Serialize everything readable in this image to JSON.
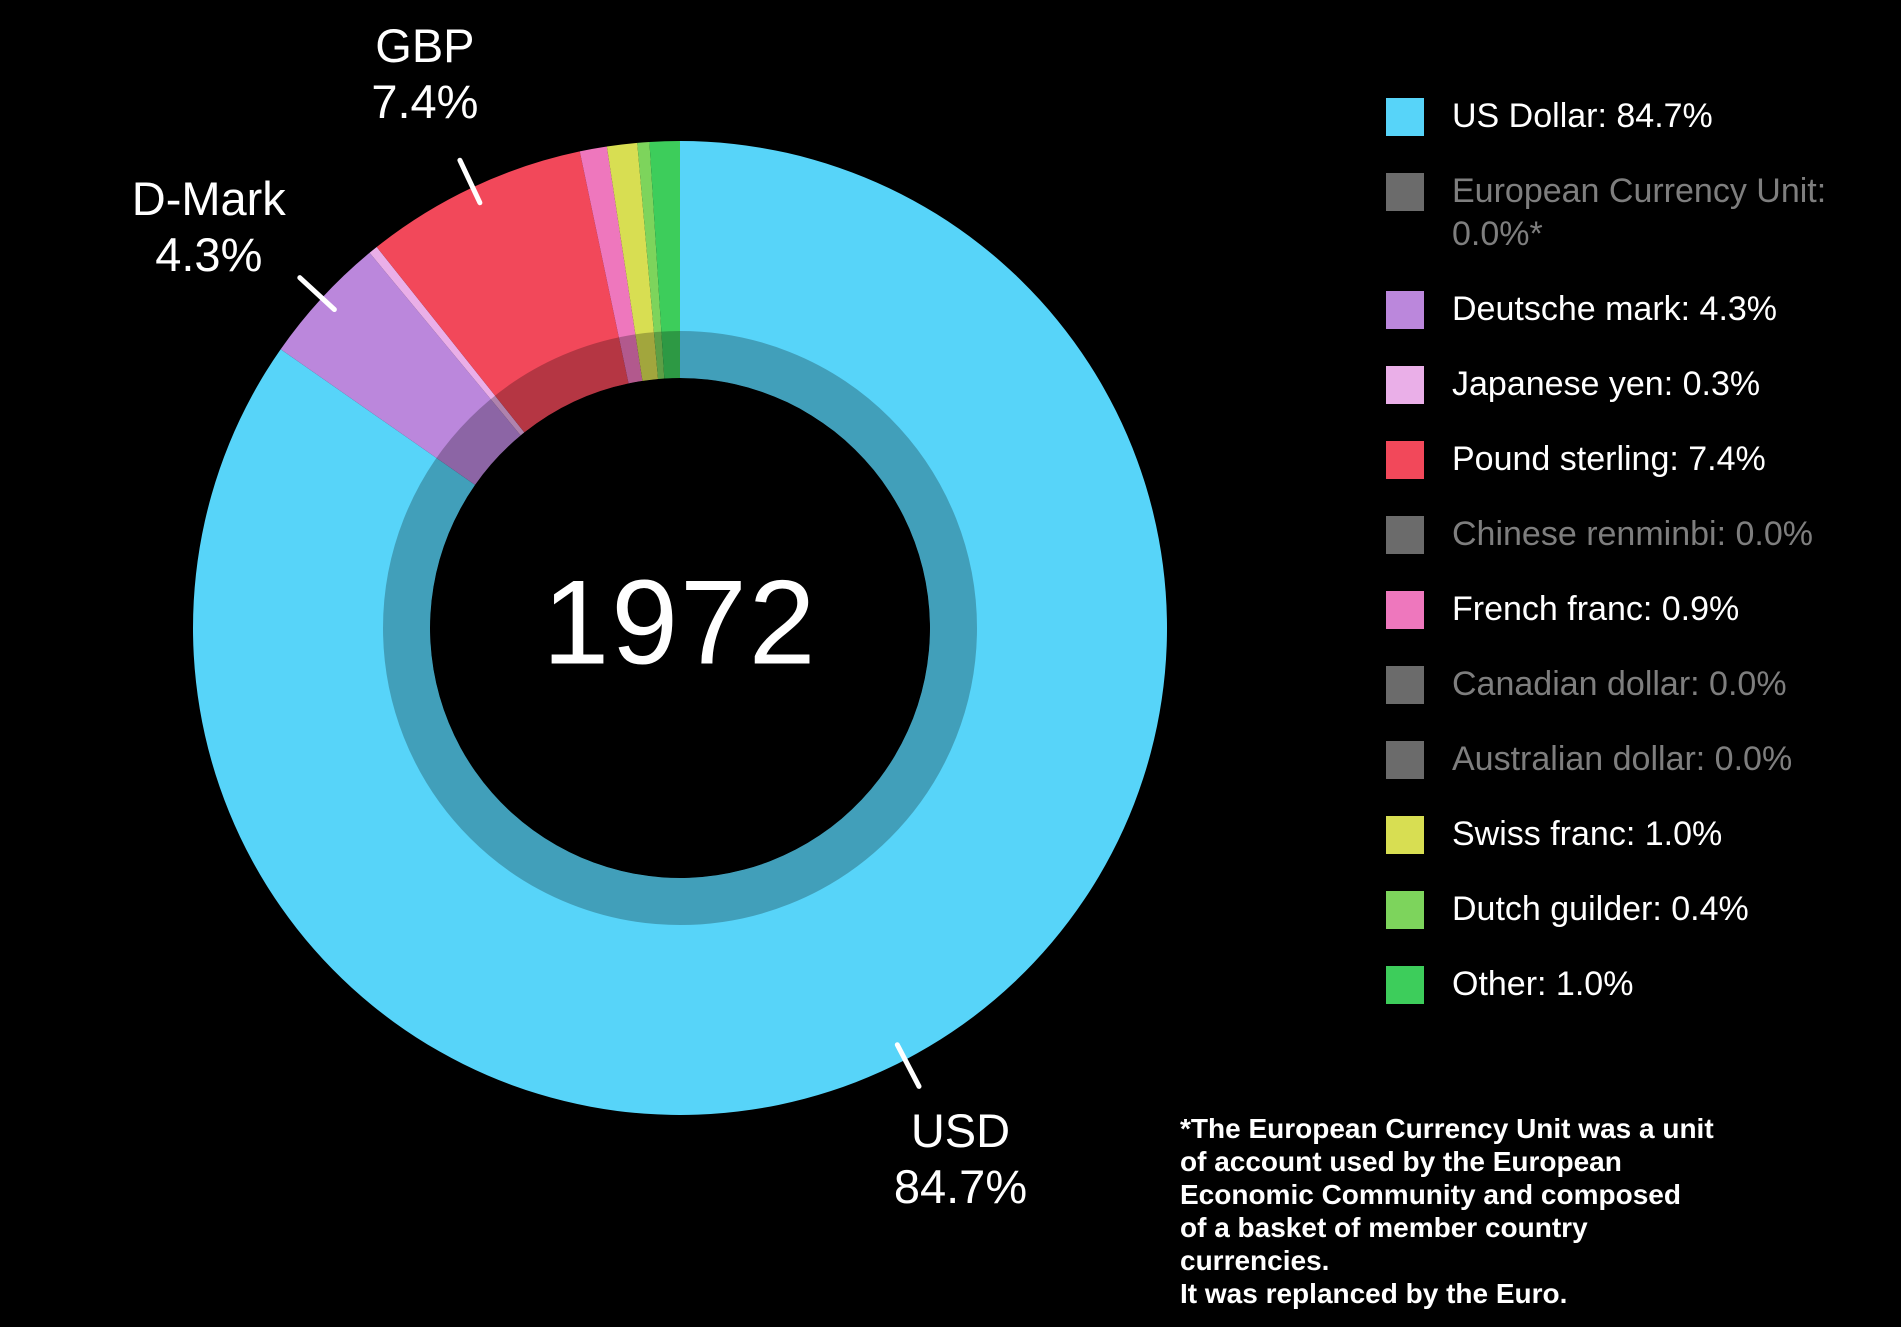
{
  "chart_data": {
    "type": "pie",
    "subtype": "donut",
    "center_label": "1972",
    "unit": "%",
    "legend_position": "right",
    "slices": [
      {
        "name": "US Dollar",
        "value": 84.7,
        "color": "#57D4F9"
      },
      {
        "name": "Deutsche mark",
        "value": 4.3,
        "color": "#BB87DC"
      },
      {
        "name": "Japanese yen",
        "value": 0.3,
        "color": "#EAAFE8"
      },
      {
        "name": "Pound sterling",
        "value": 7.4,
        "color": "#F2485A"
      },
      {
        "name": "French franc",
        "value": 0.9,
        "color": "#EE77BD"
      },
      {
        "name": "Swiss franc",
        "value": 1.0,
        "color": "#D8DE52"
      },
      {
        "name": "Dutch guilder",
        "value": 0.4,
        "color": "#7DD45C"
      },
      {
        "name": "Other",
        "value": 1.0,
        "color": "#3DCD5B"
      }
    ],
    "callouts": [
      {
        "slice": "Pound sterling",
        "label": "GBP",
        "pct": "7.4%"
      },
      {
        "slice": "Deutsche mark",
        "label": "D-Mark",
        "pct": "4.3%"
      },
      {
        "slice": "US Dollar",
        "label": "USD",
        "pct": "84.7%"
      }
    ]
  },
  "legend": {
    "items": [
      {
        "text": "US Dollar: 84.7%",
        "color": "#57D4F9",
        "muted": false
      },
      {
        "text": "European Currency Unit: 0.0%*",
        "color": "#6B6B6B",
        "muted": true
      },
      {
        "text": "Deutsche mark: 4.3%",
        "color": "#BB87DC",
        "muted": false
      },
      {
        "text": "Japanese yen: 0.3%",
        "color": "#EAAFE8",
        "muted": false
      },
      {
        "text": "Pound sterling: 7.4%",
        "color": "#F2485A",
        "muted": false
      },
      {
        "text": "Chinese renminbi: 0.0%",
        "color": "#6B6B6B",
        "muted": true
      },
      {
        "text": "French franc: 0.9%",
        "color": "#EE77BD",
        "muted": false
      },
      {
        "text": "Canadian dollar: 0.0%",
        "color": "#6B6B6B",
        "muted": true
      },
      {
        "text": "Australian dollar: 0.0%",
        "color": "#6B6B6B",
        "muted": true
      },
      {
        "text": "Swiss franc: 1.0%",
        "color": "#D8DE52",
        "muted": false
      },
      {
        "text": "Dutch guilder: 0.4%",
        "color": "#7DD45C",
        "muted": false
      },
      {
        "text": "Other: 1.0%",
        "color": "#3DCD5B",
        "muted": false
      }
    ]
  },
  "footnote": "*The European Currency Unit was a unit\nof account used by the European\nEconomic Community and composed\nof a basket of member country currencies.\nIt was replanced by the Euro.",
  "colors": {
    "background": "#000000",
    "text": "#FFFFFF",
    "muted_text": "#7E7E7E",
    "inner_ring_overlay": "rgba(0,0,0,0.25)",
    "leader_line": "#FFFFFF"
  }
}
